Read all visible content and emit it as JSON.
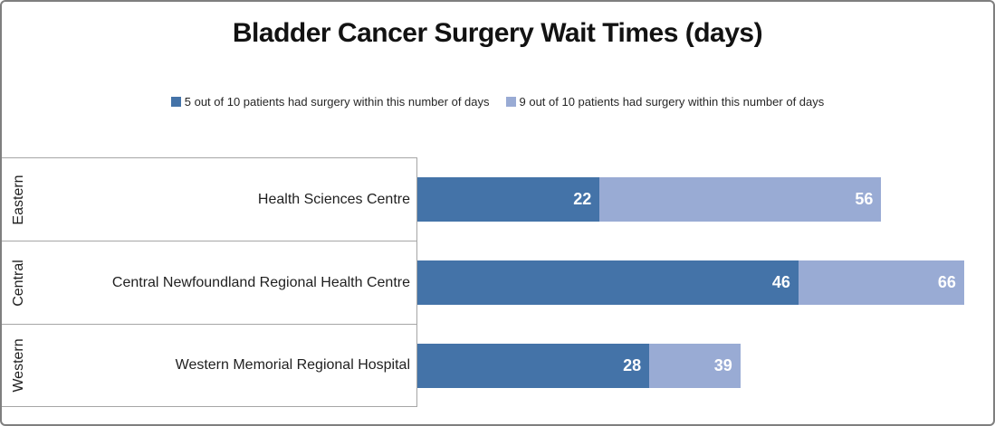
{
  "chart_data": {
    "type": "bar",
    "orientation": "horizontal",
    "stacked": true,
    "title": "Bladder Cancer Surgery Wait Times (days)",
    "xlabel": "",
    "ylabel": "",
    "xlim": [
      0,
      70
    ],
    "grid": false,
    "legend_position": "top",
    "value_labels": "inside-end",
    "groups": [
      "Eastern",
      "Central",
      "Western"
    ],
    "categories": [
      "Health Sciences Centre",
      "Central Newfoundland Regional Health Centre",
      "Western Memorial Regional Hospital"
    ],
    "series": [
      {
        "name": "5 out of 10 patients had surgery within this number of days",
        "color": "#4473A8",
        "values": [
          22,
          46,
          28
        ]
      },
      {
        "name": "9 out of 10 patients had surgery within this number of days",
        "color": "#99ABD4",
        "values": [
          56,
          66,
          39
        ]
      }
    ]
  },
  "colors": {
    "series_median": "#4473A8",
    "series_p90": "#99ABD4",
    "frame_border": "#7f7f7f",
    "grid_line": "#a6a6a6",
    "value_text": "#ffffff"
  }
}
